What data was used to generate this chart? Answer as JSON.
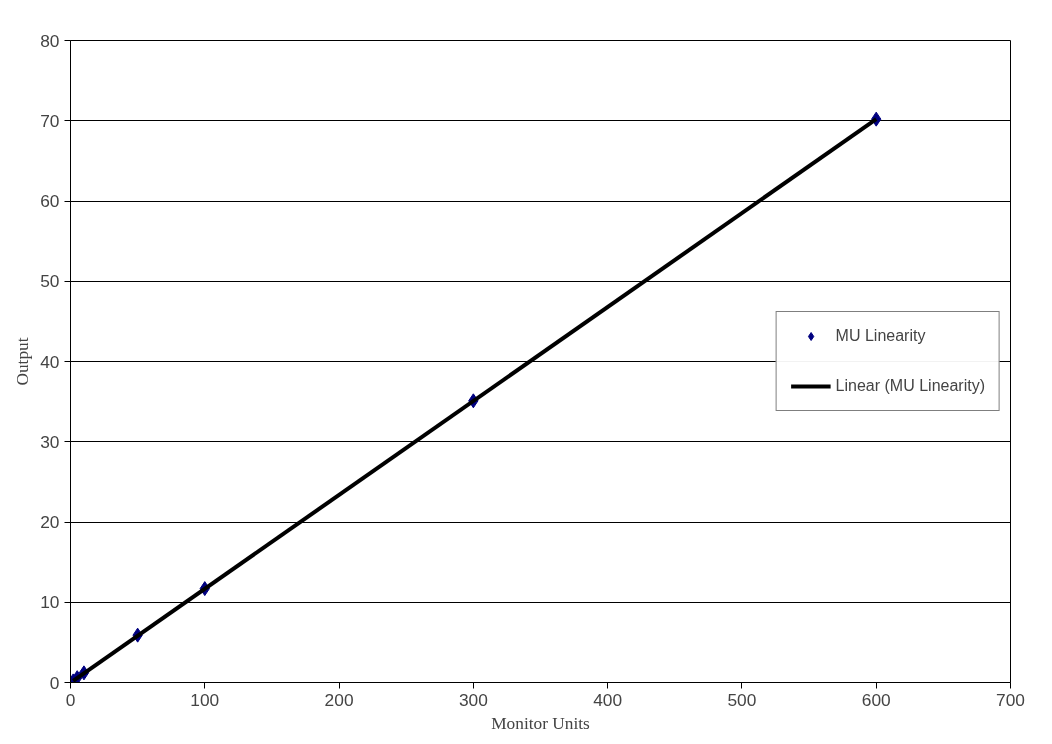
{
  "chart_data": {
    "type": "scatter",
    "xlabel": "Monitor Units",
    "ylabel": "Output",
    "xlim": [
      0,
      700
    ],
    "xticks": [
      0,
      100,
      200,
      300,
      400,
      500,
      600,
      700
    ],
    "ylim": [
      0,
      80
    ],
    "yticks": [
      0,
      10,
      20,
      30,
      40,
      50,
      60,
      70,
      80
    ],
    "grid": "y",
    "legend": "right",
    "series": [
      {
        "name": "MU Linearity",
        "marker": "diamond",
        "color": "#000080",
        "x": [
          2,
          5,
          10,
          50,
          100,
          300,
          600
        ],
        "values": [
          0.2,
          0.6,
          1.2,
          5.9,
          11.7,
          35.1,
          70.2
        ]
      },
      {
        "name": "Linear (MU Linearity)",
        "type": "line",
        "color": "#000000",
        "line_style": "solid",
        "x": [
          2,
          600
        ],
        "values": [
          0.2,
          70.2
        ]
      }
    ]
  }
}
